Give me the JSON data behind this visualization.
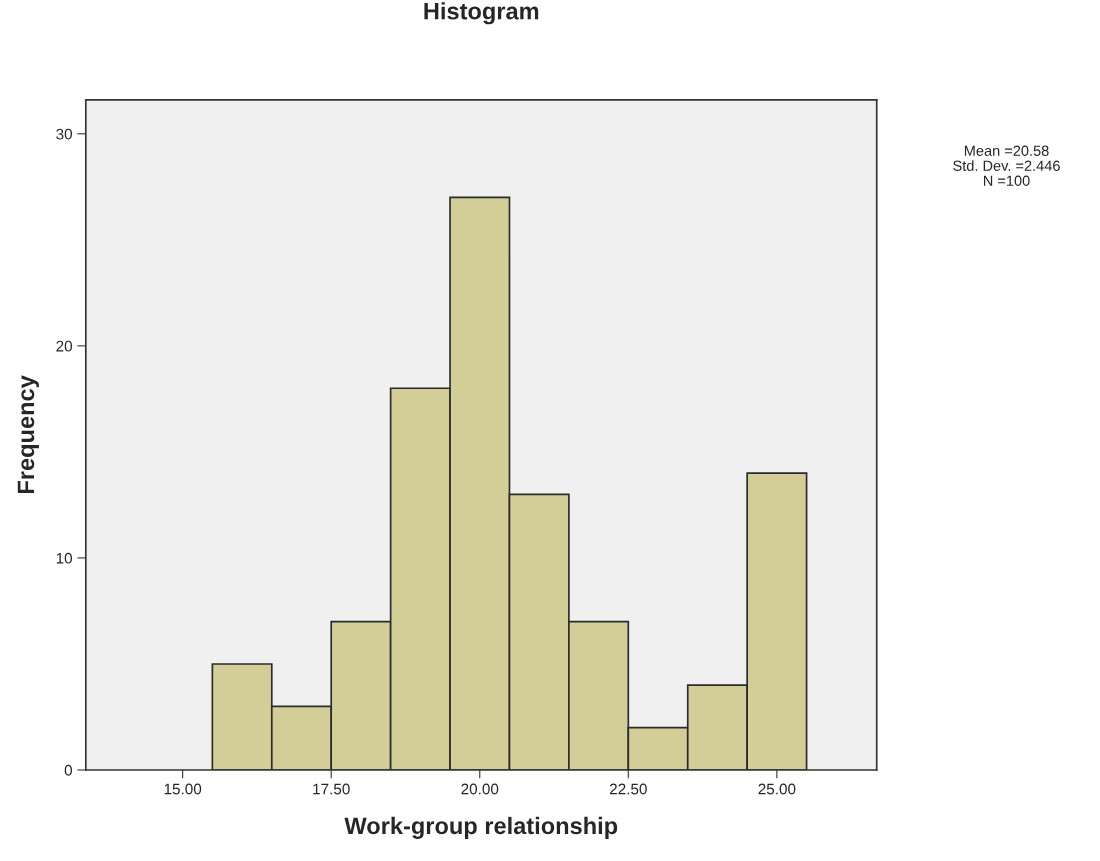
{
  "chart_data": {
    "type": "histogram",
    "title": "Histogram",
    "xlabel": "Work-group relationship",
    "ylabel": "Frequency",
    "bins": [
      15.5,
      16.5,
      17.5,
      18.5,
      19.5,
      20.5,
      21.5,
      22.5,
      23.5,
      24.5,
      25.5
    ],
    "values": [
      5,
      3,
      7,
      18,
      27,
      13,
      7,
      2,
      4,
      14
    ],
    "color": "#d3ce97",
    "xlim": [
      13.37,
      26.68
    ],
    "xticks": [
      {
        "value": 15,
        "label": "15.00"
      },
      {
        "value": 17.5,
        "label": "17.50"
      },
      {
        "value": 20,
        "label": "20.00"
      },
      {
        "value": 22.5,
        "label": "22.50"
      },
      {
        "value": 25,
        "label": "25.00"
      }
    ],
    "ylim": [
      0,
      31.6
    ],
    "yticks": [
      0,
      10,
      20,
      30
    ],
    "grid": false,
    "annotations": [
      "Mean =20.58",
      "Std. Dev. =2.446",
      "N =100"
    ]
  }
}
